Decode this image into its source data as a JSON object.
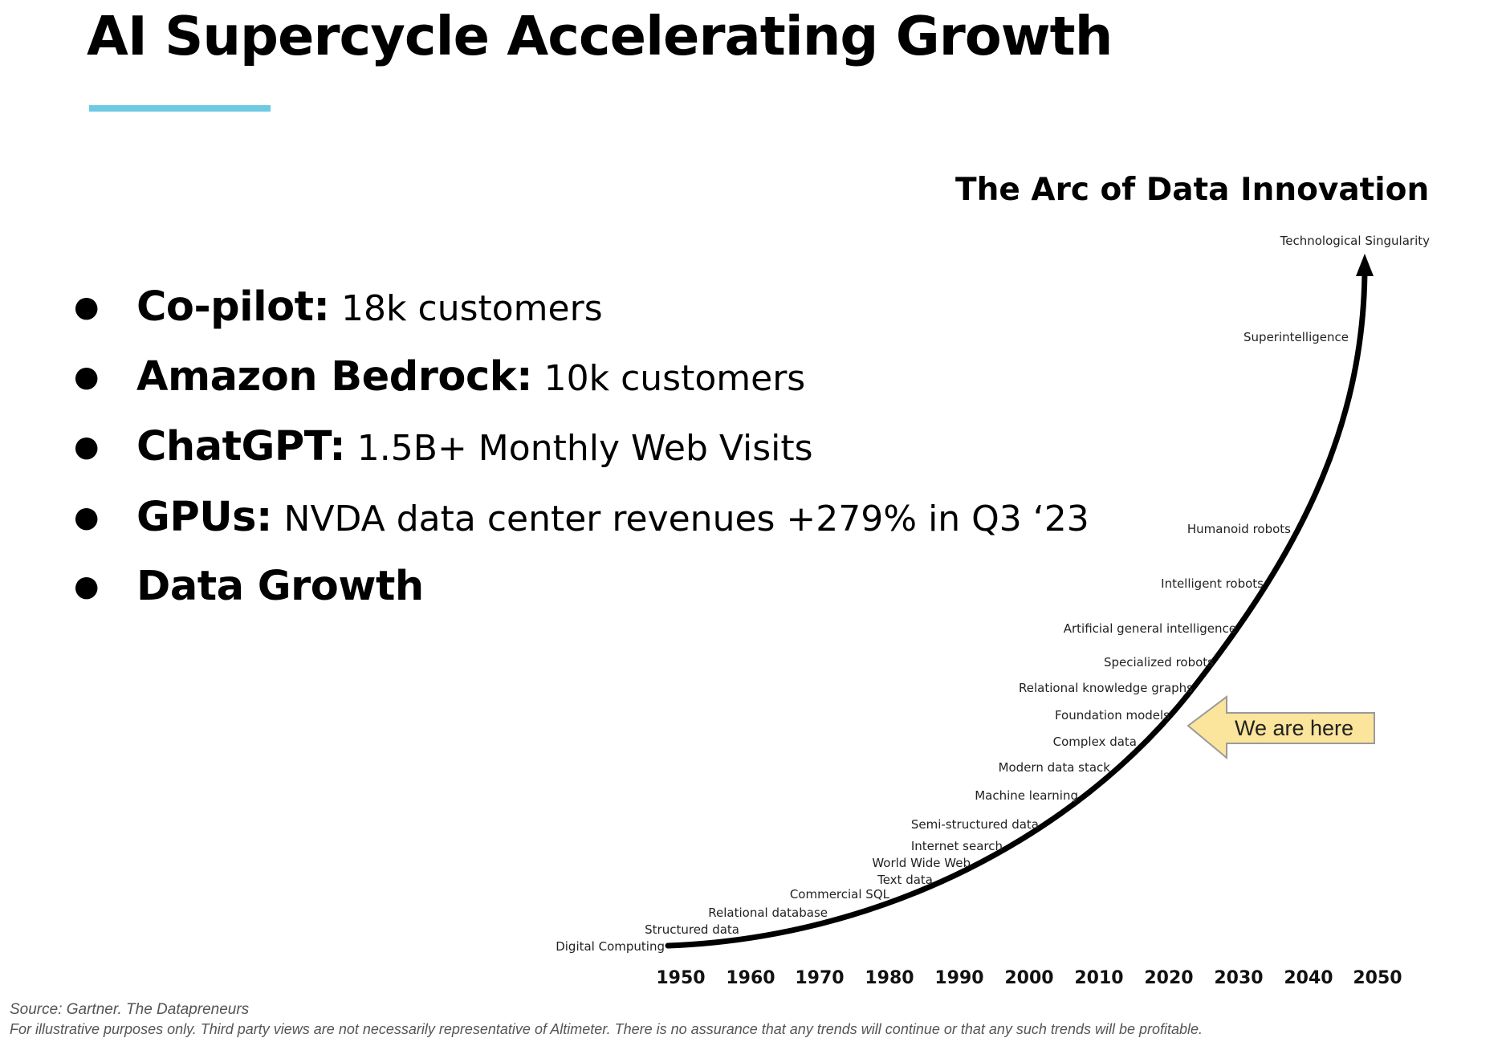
{
  "header": {
    "title": "AI Supercycle Accelerating Growth"
  },
  "bullets": [
    {
      "label": "Co-pilot:",
      "text": "18k customers"
    },
    {
      "label": "Amazon Bedrock:",
      "text": "10k customers"
    },
    {
      "label": "ChatGPT:",
      "text": "1.5B+ Monthly Web Visits"
    },
    {
      "label": "GPUs:",
      "text": "NVDA data center revenues +279% in Q3 ‘23"
    },
    {
      "label": "Data Growth",
      "text": ""
    }
  ],
  "chart": {
    "title": "The Arc of Data Innovation",
    "x_ticks": [
      "1950",
      "1960",
      "1970",
      "1980",
      "1990",
      "2000",
      "2010",
      "2020",
      "2030",
      "2040",
      "2050"
    ],
    "milestones": [
      "Digital Computing",
      "Structured data",
      "Relational database",
      "Commercial SQL",
      "Text data",
      "World Wide Web",
      "Internet search",
      "Semi-structured data",
      "Machine learning",
      "Modern data stack",
      "Complex data",
      "Foundation models",
      "Relational knowledge graphs",
      "Specialized robots",
      "Artificial general intelligence",
      "Intelligent robots",
      "Humanoid robots",
      "Superintelligence",
      "Technological Singularity"
    ],
    "callout": "We are here",
    "colors": {
      "callout_fill": "#fbe49b",
      "callout_stroke": "#9a9a9a",
      "curve": "#000000",
      "rule": "#6ec9e3"
    }
  },
  "footer": {
    "source": "Source: Gartner. The Datapreneurs",
    "disclaimer": "For illustrative purposes only. Third party views are not necessarily representative of Altimeter. There is no assurance that any trends will continue or that any such trends will be profitable."
  }
}
